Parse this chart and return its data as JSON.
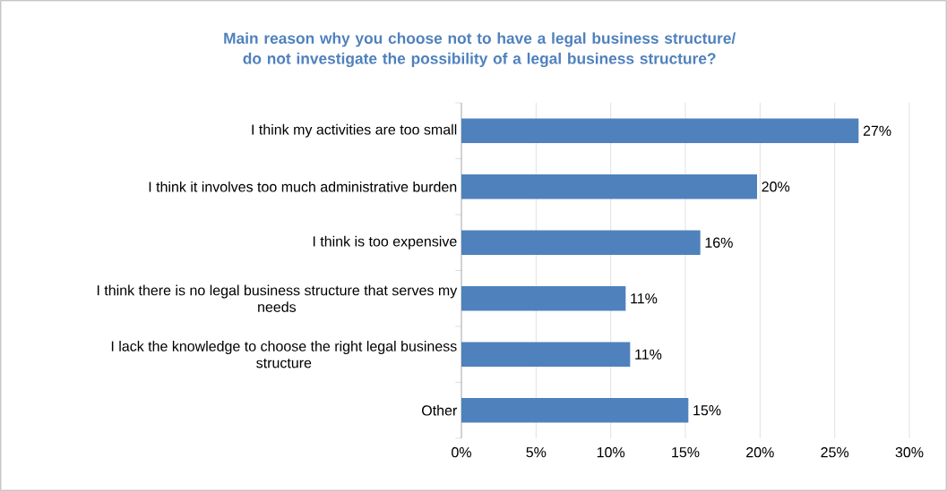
{
  "chart_data": {
    "type": "bar",
    "orientation": "horizontal",
    "title": "Main reason why you choose not to have a legal business structure/ do not investigate the possibility of a legal business structure?",
    "categories": [
      "I think my activities are too small",
      "I think it involves too much administrative burden",
      "I think is too expensive",
      "I think there is no legal business structure that serves my needs",
      "I lack the knowledge to choose the right legal business structure",
      "Other"
    ],
    "values": [
      26.6,
      19.8,
      16.0,
      11.0,
      11.3,
      15.2
    ],
    "value_labels": [
      "27%",
      "20%",
      "16%",
      "11%",
      "11%",
      "15%"
    ],
    "color": "#4f81bd",
    "xlim": [
      0,
      30
    ],
    "xticks": [
      {
        "value": 0,
        "label": "0%"
      },
      {
        "value": 5,
        "label": "5%"
      },
      {
        "value": 10,
        "label": "10%"
      },
      {
        "value": 15,
        "label": "15%"
      },
      {
        "value": 20,
        "label": "20%"
      },
      {
        "value": 25,
        "label": "25%"
      },
      {
        "value": 30,
        "label": "30%"
      }
    ],
    "grid": "x"
  }
}
